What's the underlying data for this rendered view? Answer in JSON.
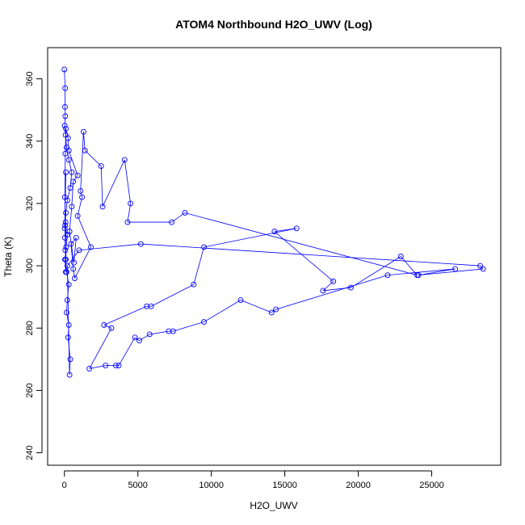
{
  "chart_data": {
    "type": "scatter",
    "title": "ATOM4 Northbound H2O_UWV (Log)",
    "xlabel": "H2O_UWV",
    "ylabel": "Theta (K)",
    "xlim": [
      -1140,
      29700
    ],
    "ylim": [
      236,
      370
    ],
    "xticks": [
      0,
      5000,
      10000,
      15000,
      20000,
      25000
    ],
    "xtick_labels": [
      "0",
      "5000",
      "10000",
      "15000",
      "20000",
      "25000"
    ],
    "yticks": [
      240,
      260,
      280,
      300,
      320,
      340,
      360
    ],
    "ytick_labels": [
      "240",
      "260",
      "280",
      "300",
      "320",
      "340",
      "360"
    ],
    "grid": false,
    "legend": "none",
    "color": "#0000ff",
    "series": [
      {
        "points": [
          [
            0,
            363
          ],
          [
            50,
            357
          ],
          [
            40,
            351
          ],
          [
            60,
            348
          ],
          [
            20,
            345
          ],
          [
            80,
            342
          ],
          [
            150,
            338
          ],
          [
            300,
            334
          ],
          [
            500,
            330
          ],
          [
            400,
            325
          ],
          [
            200,
            321
          ],
          [
            100,
            317
          ],
          [
            50,
            313
          ],
          [
            30,
            309
          ],
          [
            60,
            305
          ],
          [
            100,
            302
          ],
          [
            150,
            298
          ],
          [
            300,
            294
          ],
          [
            200,
            289
          ],
          [
            150,
            285
          ],
          [
            300,
            281
          ],
          [
            250,
            277
          ],
          [
            400,
            270
          ],
          [
            350,
            265
          ],
          [
            200,
            300
          ],
          [
            1000,
            305
          ],
          [
            5200,
            307
          ],
          [
            28300,
            300
          ],
          [
            28500,
            299
          ],
          [
            24100,
            297
          ],
          [
            26600,
            299
          ],
          [
            22000,
            297
          ],
          [
            14400,
            286
          ],
          [
            14100,
            285
          ],
          [
            12000,
            289
          ],
          [
            9500,
            282
          ],
          [
            7400,
            279
          ],
          [
            7100,
            279
          ],
          [
            5800,
            278
          ],
          [
            5100,
            276
          ],
          [
            4800,
            277
          ],
          [
            3700,
            268
          ],
          [
            3500,
            268
          ],
          [
            2800,
            268
          ],
          [
            1700,
            267
          ],
          [
            3200,
            280
          ],
          [
            2700,
            281
          ],
          [
            5600,
            287
          ],
          [
            5900,
            287
          ],
          [
            8800,
            294
          ],
          [
            9500,
            306
          ],
          [
            15800,
            312
          ],
          [
            14300,
            311
          ],
          [
            18300,
            295
          ],
          [
            17600,
            292
          ],
          [
            19500,
            293
          ],
          [
            22900,
            303
          ],
          [
            24000,
            297
          ],
          [
            8200,
            317
          ],
          [
            7300,
            314
          ],
          [
            4300,
            314
          ],
          [
            4500,
            320
          ],
          [
            4100,
            334
          ],
          [
            2600,
            319
          ],
          [
            2500,
            332
          ],
          [
            1400,
            337
          ],
          [
            1300,
            343
          ],
          [
            1100,
            324
          ],
          [
            1200,
            322
          ],
          [
            900,
            316
          ],
          [
            1800,
            306
          ],
          [
            700,
            296
          ],
          [
            600,
            299
          ],
          [
            450,
            307
          ],
          [
            800,
            309
          ],
          [
            650,
            301
          ],
          [
            350,
            311
          ],
          [
            500,
            319
          ],
          [
            600,
            327
          ],
          [
            900,
            329
          ],
          [
            300,
            337
          ],
          [
            250,
            341
          ],
          [
            100,
            344
          ],
          [
            60,
            336
          ],
          [
            30,
            322
          ],
          [
            80,
            314
          ],
          [
            120,
            306
          ],
          [
            90,
            298
          ],
          [
            40,
            302
          ],
          [
            200,
            310
          ],
          [
            20,
            312
          ],
          [
            100,
            330
          ]
        ]
      }
    ]
  }
}
